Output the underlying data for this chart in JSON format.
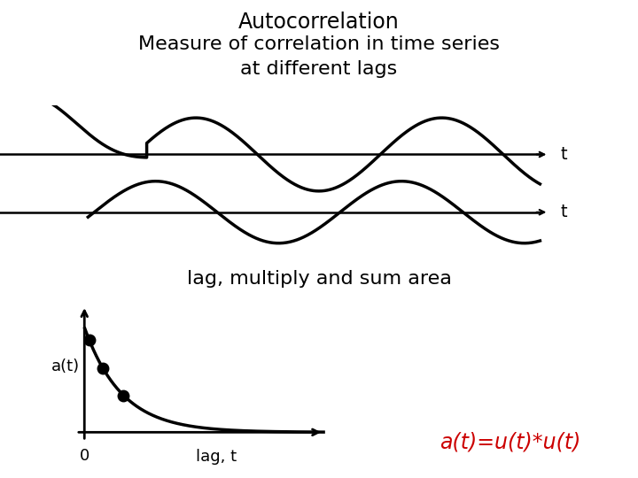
{
  "title_line1": "Autocorrelation",
  "title_line2": "Measure of correlation in time series",
  "title_line3": "at different lags",
  "title_fontsize": 17,
  "wave1_label": "t",
  "wave2_label": "t",
  "mid_text": "lag, multiply and sum area",
  "mid_text_fontsize": 16,
  "ylabel_small": "a(t)",
  "xlabel_small": "lag, t",
  "origin_label": "0",
  "formula_text": "a(t)=u(t)*u(t)",
  "formula_color": "#cc0000",
  "formula_fontsize": 17,
  "background_color": "#ffffff",
  "wave_color": "#000000"
}
